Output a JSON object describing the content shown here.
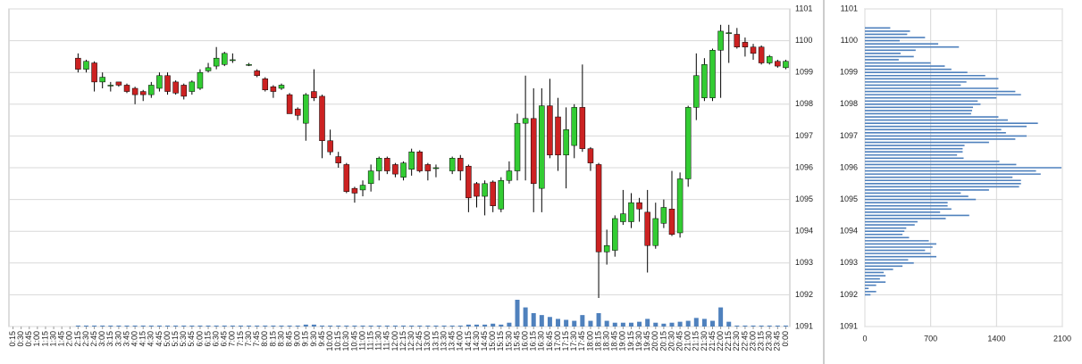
{
  "chart_data": [
    {
      "type": "candlestick",
      "categories": [
        "0:15",
        "0:30",
        "0:45",
        "1:00",
        "1:15",
        "1:30",
        "1:45",
        "2:00",
        "2:15",
        "2:30",
        "2:45",
        "3:00",
        "3:15",
        "3:30",
        "3:45",
        "4:00",
        "4:15",
        "4:30",
        "4:45",
        "5:00",
        "5:15",
        "5:30",
        "5:45",
        "6:00",
        "6:15",
        "6:30",
        "6:45",
        "7:00",
        "7:15",
        "7:30",
        "7:45",
        "8:00",
        "8:15",
        "8:30",
        "8:45",
        "9:00",
        "9:15",
        "9:30",
        "9:45",
        "10:00",
        "10:15",
        "10:30",
        "10:45",
        "11:00",
        "11:15",
        "11:30",
        "11:45",
        "12:00",
        "12:15",
        "12:30",
        "12:45",
        "13:00",
        "13:15",
        "13:30",
        "13:45",
        "14:00",
        "14:15",
        "14:30",
        "14:45",
        "15:00",
        "15:15",
        "15:30",
        "15:45",
        "16:00",
        "16:15",
        "16:30",
        "16:45",
        "17:00",
        "17:15",
        "17:30",
        "17:45",
        "18:00",
        "18:15",
        "18:30",
        "18:45",
        "19:00",
        "19:15",
        "19:30",
        "19:45",
        "20:00",
        "20:15",
        "20:30",
        "20:45",
        "21:00",
        "21:15",
        "21:30",
        "21:45",
        "22:00",
        "22:15",
        "22:30",
        "22:45",
        "23:00",
        "23:15",
        "23:30",
        "23:45",
        "0:00"
      ],
      "open": [
        null,
        null,
        null,
        null,
        null,
        null,
        null,
        null,
        1099.45,
        1099.1,
        1099.3,
        1098.7,
        1098.6,
        1098.7,
        1098.6,
        1098.5,
        1098.4,
        1098.3,
        1098.5,
        1098.9,
        1098.7,
        1098.6,
        1098.4,
        1098.5,
        1099.05,
        1099.2,
        1099.25,
        1099.4,
        null,
        1099.25,
        1099.05,
        1098.8,
        1098.55,
        1098.5,
        1098.3,
        1097.85,
        1097.4,
        1098.4,
        1098.25,
        1096.85,
        1096.35,
        1096.1,
        1095.35,
        1095.3,
        1095.5,
        1095.9,
        1096.3,
        1096.1,
        1095.7,
        1095.95,
        1096.5,
        1096.1,
        1096.0,
        null,
        1095.9,
        1096.3,
        1096.05,
        1095.5,
        1095.1,
        1095.55,
        1094.7,
        1095.6,
        1095.9,
        1097.4,
        1097.55,
        1095.35,
        1097.95,
        1097.6,
        1096.4,
        1096.7,
        1097.9,
        1096.6,
        1096.1,
        1093.35,
        1093.4,
        1094.3,
        1094.3,
        1094.9,
        1094.6,
        1093.55,
        1094.25,
        1094.7,
        1093.95,
        1095.65,
        1097.9,
        1098.2,
        1098.2,
        1099.7,
        1100.25,
        1100.2,
        1099.95,
        1099.8,
        1099.8,
        1099.3,
        1099.35,
        1099.15
      ],
      "high": [
        null,
        null,
        null,
        null,
        null,
        null,
        null,
        null,
        1099.6,
        1099.4,
        1099.35,
        1099.0,
        1098.7,
        1098.7,
        1098.65,
        1098.55,
        1098.45,
        1098.7,
        1099.0,
        1099.0,
        1098.75,
        1098.65,
        1098.75,
        1099.1,
        1099.3,
        1099.8,
        1099.65,
        1099.6,
        null,
        1099.3,
        1099.1,
        1098.85,
        1098.6,
        1098.65,
        1098.35,
        1097.9,
        1098.35,
        1099.1,
        1098.3,
        1097.2,
        1096.5,
        1096.15,
        1095.4,
        1095.6,
        1096.1,
        1096.35,
        1096.35,
        1096.15,
        1096.2,
        1096.6,
        1096.55,
        1096.15,
        1096.1,
        null,
        1096.35,
        1096.4,
        1096.1,
        1095.55,
        1095.6,
        1095.6,
        1095.7,
        1096.2,
        1097.7,
        1098.9,
        1098.5,
        1098.5,
        1098.8,
        1098.2,
        1097.9,
        1098.0,
        1099.25,
        1096.65,
        1096.15,
        1094.05,
        1094.5,
        1095.3,
        1095.2,
        1095.05,
        1095.3,
        1094.9,
        1095.0,
        1095.9,
        1095.85,
        1097.95,
        1099.6,
        1099.45,
        1099.75,
        1100.5,
        1100.5,
        1100.4,
        1100.1,
        1099.9,
        1099.85,
        1099.55,
        1099.4,
        1099.4
      ],
      "low": [
        null,
        null,
        null,
        null,
        null,
        null,
        null,
        null,
        1099.0,
        1099.0,
        1098.4,
        1098.5,
        1098.4,
        1098.55,
        1098.35,
        1098.0,
        1098.1,
        1098.2,
        1098.4,
        1098.3,
        1098.3,
        1098.15,
        1098.3,
        1098.45,
        1099.0,
        1099.1,
        1099.2,
        1099.3,
        null,
        1099.2,
        1098.85,
        1098.4,
        1098.2,
        1098.45,
        1097.7,
        1097.5,
        1096.85,
        1098.1,
        1096.3,
        1096.4,
        1096.0,
        1095.2,
        1094.9,
        1095.1,
        1095.25,
        1095.6,
        1095.8,
        1095.7,
        1095.6,
        1095.75,
        1095.85,
        1095.6,
        1095.7,
        null,
        1095.8,
        1095.6,
        1094.6,
        1094.75,
        1094.5,
        1094.6,
        1094.6,
        1095.5,
        1095.6,
        1095.6,
        1094.6,
        1094.6,
        1096.3,
        1095.9,
        1095.35,
        1096.3,
        1096.5,
        1095.9,
        1091.9,
        1092.95,
        1093.2,
        1094.2,
        1094.1,
        1094.3,
        1092.7,
        1093.45,
        1094.1,
        1093.85,
        1093.8,
        1095.4,
        1097.5,
        1098.1,
        1098.1,
        1098.2,
        1099.3,
        1099.75,
        1099.5,
        1099.4,
        1099.25,
        1099.25,
        1099.15,
        1099.1
      ],
      "close": [
        null,
        null,
        null,
        null,
        null,
        null,
        null,
        null,
        1099.1,
        1099.35,
        1098.7,
        1098.85,
        1098.6,
        1098.6,
        1098.4,
        1098.3,
        1098.3,
        1098.6,
        1098.9,
        1098.4,
        1098.35,
        1098.25,
        1098.7,
        1099.0,
        1099.15,
        1099.45,
        1099.6,
        1099.4,
        null,
        1099.25,
        1098.9,
        1098.45,
        1098.4,
        1098.6,
        1097.7,
        1097.65,
        1098.3,
        1098.2,
        1096.85,
        1096.5,
        1096.15,
        1095.25,
        1095.2,
        1095.45,
        1095.9,
        1096.3,
        1095.9,
        1095.8,
        1096.15,
        1096.5,
        1095.9,
        1095.9,
        1096.0,
        null,
        1096.3,
        1095.9,
        1095.05,
        1095.1,
        1095.5,
        1094.8,
        1095.6,
        1095.9,
        1097.4,
        1097.55,
        1095.5,
        1097.95,
        1096.4,
        1096.4,
        1097.2,
        1097.9,
        1096.6,
        1096.15,
        1093.35,
        1093.55,
        1094.4,
        1094.55,
        1094.9,
        1094.7,
        1093.55,
        1094.4,
        1094.75,
        1093.9,
        1095.65,
        1097.9,
        1098.9,
        1099.25,
        1099.7,
        1100.3,
        1100.25,
        1099.8,
        1099.8,
        1099.6,
        1099.3,
        1099.5,
        1099.2,
        1099.35
      ],
      "volume": [
        0,
        0,
        0,
        0,
        0,
        0,
        0,
        0,
        1,
        1,
        1,
        1,
        1,
        1,
        1,
        1,
        1,
        1,
        1,
        1,
        1,
        1,
        1,
        1,
        1,
        1,
        1,
        1,
        1,
        1,
        1,
        1,
        1,
        1,
        1,
        1,
        2,
        2,
        1,
        1,
        1,
        1,
        1,
        1,
        1,
        1,
        1,
        1,
        1,
        1,
        1,
        1,
        1,
        1,
        1,
        1,
        2,
        2,
        2,
        3,
        2,
        4,
        28,
        20,
        14,
        12,
        10,
        8,
        7,
        6,
        12,
        6,
        14,
        6,
        4,
        4,
        4,
        5,
        8,
        4,
        3,
        4,
        5,
        6,
        9,
        8,
        6,
        20,
        5,
        1,
        1,
        1,
        1,
        1,
        1,
        1
      ],
      "up_color": "#33cc33",
      "down_color": "#cc2222",
      "volume_color": "#4f81bd",
      "ylim": [
        1091,
        1101
      ],
      "yticks": [
        1091,
        1092,
        1093,
        1094,
        1095,
        1096,
        1097,
        1098,
        1099,
        1100,
        1101
      ],
      "grid": true
    },
    {
      "type": "volume_profile",
      "levels": [
        1100.4,
        1100.3,
        1100.2,
        1100.1,
        1100.0,
        1099.9,
        1099.8,
        1099.7,
        1099.6,
        1099.5,
        1099.4,
        1099.3,
        1099.2,
        1099.1,
        1099.0,
        1098.9,
        1098.8,
        1098.7,
        1098.6,
        1098.5,
        1098.4,
        1098.3,
        1098.2,
        1098.1,
        1098.0,
        1097.9,
        1097.8,
        1097.7,
        1097.6,
        1097.5,
        1097.4,
        1097.3,
        1097.2,
        1097.1,
        1097.0,
        1096.9,
        1096.8,
        1096.7,
        1096.6,
        1096.5,
        1096.4,
        1096.3,
        1096.2,
        1096.1,
        1096.0,
        1095.9,
        1095.8,
        1095.7,
        1095.6,
        1095.5,
        1095.4,
        1095.3,
        1095.2,
        1095.1,
        1095.0,
        1094.9,
        1094.8,
        1094.7,
        1094.6,
        1094.5,
        1094.4,
        1094.3,
        1094.2,
        1094.1,
        1094.0,
        1093.9,
        1093.8,
        1093.7,
        1093.6,
        1093.5,
        1093.4,
        1093.3,
        1093.2,
        1093.1,
        1093.0,
        1092.9,
        1092.8,
        1092.7,
        1092.6,
        1092.5,
        1092.4,
        1092.3,
        1092.2,
        1092.1,
        1092.0
      ],
      "values": [
        270,
        480,
        450,
        640,
        370,
        780,
        1000,
        540,
        380,
        520,
        360,
        700,
        850,
        920,
        1090,
        1280,
        1420,
        1080,
        1020,
        1420,
        1600,
        1660,
        1400,
        1200,
        1230,
        1150,
        1140,
        1130,
        1420,
        1520,
        1840,
        1720,
        1450,
        1500,
        1720,
        1600,
        1320,
        1060,
        1040,
        1040,
        980,
        1050,
        1430,
        1610,
        2090,
        1820,
        1870,
        1570,
        1660,
        1660,
        1640,
        1320,
        1020,
        1100,
        1180,
        880,
        880,
        920,
        800,
        1110,
        860,
        560,
        530,
        440,
        420,
        400,
        470,
        680,
        760,
        720,
        640,
        700,
        760,
        460,
        520,
        400,
        300,
        200,
        220,
        160,
        220,
        120,
        40,
        120,
        60
      ],
      "color": "#4f81bd",
      "xlim": [
        0,
        2100
      ],
      "xticks": [
        0,
        700,
        1400,
        2100
      ],
      "ylim": [
        1091,
        1101
      ],
      "yticks": [
        1091,
        1092,
        1093,
        1094,
        1095,
        1096,
        1097,
        1098,
        1099,
        1100,
        1101
      ],
      "grid": true
    }
  ]
}
